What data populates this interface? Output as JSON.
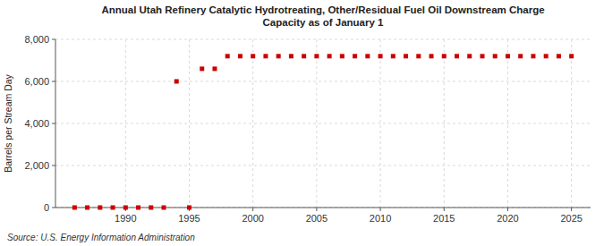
{
  "chart_data": {
    "type": "scatter",
    "title": "Annual Utah Refinery Catalytic Hydrotreating, Other/Residual Fuel Oil Downstream Charge\nCapacity as of January 1",
    "ylabel": "Barrels per Stream Day",
    "annotations": [
      "Source: U.S. Energy Information Administration"
    ],
    "x": [
      1986,
      1987,
      1988,
      1989,
      1990,
      1991,
      1992,
      1993,
      1994,
      1995,
      1996,
      1997,
      1998,
      1999,
      2000,
      2001,
      2002,
      2003,
      2004,
      2005,
      2006,
      2007,
      2008,
      2009,
      2010,
      2011,
      2012,
      2013,
      2014,
      2015,
      2016,
      2017,
      2018,
      2019,
      2020,
      2021,
      2022,
      2023,
      2024,
      2025
    ],
    "values": [
      0,
      0,
      0,
      0,
      0,
      0,
      0,
      0,
      6000,
      0,
      6600,
      6600,
      7200,
      7200,
      7200,
      7200,
      7200,
      7200,
      7200,
      7200,
      7200,
      7200,
      7200,
      7200,
      7200,
      7200,
      7200,
      7200,
      7200,
      7200,
      7200,
      7200,
      7200,
      7200,
      7200,
      7200,
      7200,
      7200,
      7200,
      7200
    ],
    "color": "#cc0000",
    "marker": "square",
    "xlim": [
      1984.5,
      2026.5
    ],
    "ylim": [
      0,
      8000
    ],
    "xticks": [
      1990,
      1995,
      2000,
      2005,
      2010,
      2015,
      2020,
      2025
    ],
    "yticks": [
      0,
      {
        "value": 2000,
        "label": "2,000"
      },
      {
        "value": 4000,
        "label": "4,000"
      },
      {
        "value": 6000,
        "label": "6,000"
      },
      {
        "value": 8000,
        "label": "8,000"
      }
    ],
    "grid": true
  }
}
